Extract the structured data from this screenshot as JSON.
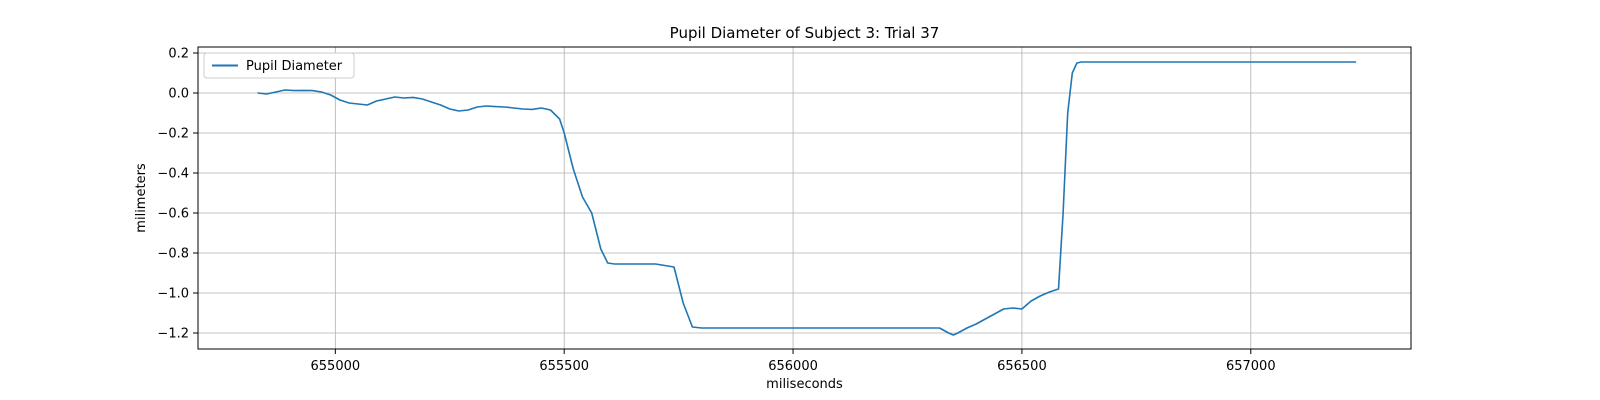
{
  "chart_data": {
    "type": "line",
    "title": "Pupil Diameter of Subject 3: Trial 37",
    "xlabel": "miliseconds",
    "ylabel": "milimeters",
    "xlim": [
      654700,
      657350
    ],
    "ylim": [
      -1.28,
      0.23
    ],
    "xticks": [
      655000,
      655500,
      656000,
      656500,
      657000
    ],
    "yticks": [
      0.2,
      0.0,
      -0.2,
      -0.4,
      -0.6,
      -0.8,
      -1.0,
      -1.2
    ],
    "xtick_labels": [
      "655000",
      "655500",
      "656000",
      "656500",
      "657000"
    ],
    "ytick_labels": [
      "0.2",
      "0.0",
      "−0.2",
      "−0.4",
      "−0.6",
      "−0.8",
      "−1.0",
      "−1.2"
    ],
    "grid": true,
    "legend_position": "top-left",
    "series": [
      {
        "name": "Pupil Diameter",
        "color": "#1f77b4",
        "x": [
          654830,
          654850,
          654870,
          654890,
          654910,
          654930,
          654950,
          654970,
          654990,
          655010,
          655030,
          655050,
          655070,
          655090,
          655110,
          655130,
          655150,
          655170,
          655190,
          655210,
          655230,
          655250,
          655270,
          655290,
          655310,
          655330,
          655350,
          655370,
          655390,
          655410,
          655430,
          655450,
          655470,
          655490,
          655500,
          655520,
          655540,
          655560,
          655580,
          655595,
          655610,
          655640,
          655700,
          655740,
          655760,
          655780,
          655800,
          655850,
          656000,
          656200,
          656320,
          656340,
          656350,
          656360,
          656380,
          656400,
          656420,
          656440,
          656460,
          656480,
          656500,
          656520,
          656540,
          656560,
          656580,
          656590,
          656600,
          656610,
          656620,
          656630,
          656700,
          656900,
          657100,
          657230
        ],
        "y": [
          0.0,
          -0.005,
          0.005,
          0.015,
          0.012,
          0.013,
          0.012,
          0.005,
          -0.01,
          -0.035,
          -0.05,
          -0.055,
          -0.06,
          -0.04,
          -0.03,
          -0.02,
          -0.025,
          -0.022,
          -0.03,
          -0.045,
          -0.06,
          -0.08,
          -0.09,
          -0.085,
          -0.07,
          -0.065,
          -0.068,
          -0.07,
          -0.075,
          -0.08,
          -0.082,
          -0.075,
          -0.085,
          -0.13,
          -0.2,
          -0.38,
          -0.52,
          -0.6,
          -0.78,
          -0.85,
          -0.855,
          -0.855,
          -0.855,
          -0.87,
          -1.05,
          -1.17,
          -1.175,
          -1.175,
          -1.175,
          -1.175,
          -1.175,
          -1.2,
          -1.21,
          -1.2,
          -1.175,
          -1.155,
          -1.13,
          -1.105,
          -1.08,
          -1.075,
          -1.08,
          -1.04,
          -1.015,
          -0.995,
          -0.98,
          -0.6,
          -0.1,
          0.1,
          0.15,
          0.155,
          0.155,
          0.155,
          0.155,
          0.155
        ]
      }
    ]
  }
}
